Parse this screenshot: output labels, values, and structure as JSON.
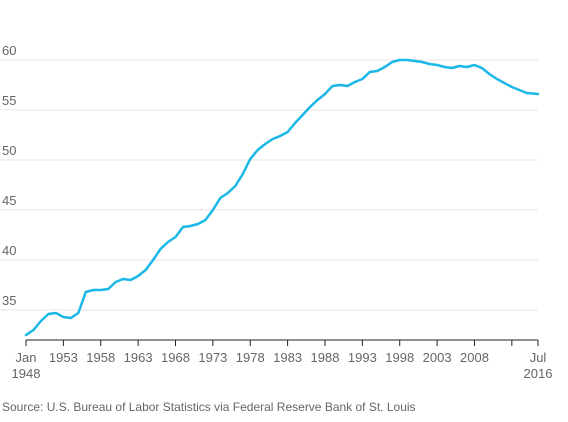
{
  "chart_data": {
    "type": "line",
    "title": "",
    "xlabel": "",
    "ylabel": "",
    "xlim": [
      1948.0,
      2016.5
    ],
    "ylim": [
      32,
      62
    ],
    "grid": true,
    "legend": "none",
    "colors": {
      "line": "#1ab8e6",
      "grid": "#e6e6e6",
      "axis": "#222222",
      "text": "#666666"
    },
    "y_ticks": [
      {
        "value": 35,
        "label": "35"
      },
      {
        "value": 40,
        "label": "40"
      },
      {
        "value": 45,
        "label": "45"
      },
      {
        "value": 50,
        "label": "50"
      },
      {
        "value": 55,
        "label": "55"
      },
      {
        "value": 60,
        "label": "60"
      }
    ],
    "x_ticks": [
      {
        "value": 1948.0,
        "label": "Jan",
        "sublabel": "1948"
      },
      {
        "value": 1953,
        "label": "1953"
      },
      {
        "value": 1958,
        "label": "1958"
      },
      {
        "value": 1963,
        "label": "1963"
      },
      {
        "value": 1968,
        "label": "1968"
      },
      {
        "value": 1973,
        "label": "1973"
      },
      {
        "value": 1978,
        "label": "1978"
      },
      {
        "value": 1983,
        "label": "1983"
      },
      {
        "value": 1988,
        "label": "1988"
      },
      {
        "value": 1993,
        "label": "1993"
      },
      {
        "value": 1998,
        "label": "1998"
      },
      {
        "value": 2003,
        "label": "2003"
      },
      {
        "value": 2008,
        "label": "2008"
      },
      {
        "value": 2013,
        "label": ""
      },
      {
        "value": 2016.5,
        "label": "Jul",
        "sublabel": "2016"
      }
    ],
    "series": [
      {
        "x": [
          1948.0,
          1949,
          1950,
          1951,
          1952,
          1953,
          1954,
          1955,
          1956,
          1957,
          1958,
          1959,
          1960,
          1961,
          1962,
          1963,
          1964,
          1965,
          1966,
          1967,
          1968,
          1969,
          1970,
          1971,
          1972,
          1973,
          1974,
          1975,
          1976,
          1977,
          1978,
          1979,
          1980,
          1981,
          1982,
          1983,
          1984,
          1985,
          1986,
          1987,
          1988,
          1989,
          1990,
          1991,
          1992,
          1993,
          1994,
          1995,
          1996,
          1997,
          1998,
          1999,
          2000,
          2001,
          2002,
          2003,
          2004,
          2005,
          2006,
          2007,
          2008,
          2009,
          2010,
          2011,
          2012,
          2013,
          2014,
          2015,
          2016.5
        ],
        "values": [
          32.5,
          33.0,
          33.9,
          34.6,
          34.7,
          34.3,
          34.2,
          34.7,
          36.8,
          37.0,
          37.0,
          37.1,
          37.8,
          38.1,
          38.0,
          38.4,
          39.0,
          40.0,
          41.1,
          41.8,
          42.3,
          43.3,
          43.4,
          43.6,
          44.0,
          45.0,
          46.2,
          46.7,
          47.4,
          48.6,
          50.1,
          51.0,
          51.6,
          52.1,
          52.4,
          52.8,
          53.7,
          54.5,
          55.3,
          56.0,
          56.6,
          57.4,
          57.5,
          57.4,
          57.8,
          58.1,
          58.8,
          58.9,
          59.3,
          59.8,
          60.0,
          60.0,
          59.9,
          59.8,
          59.6,
          59.5,
          59.3,
          59.2,
          59.4,
          59.3,
          59.5,
          59.2,
          58.6,
          58.1,
          57.7,
          57.3,
          57.0,
          56.7,
          56.6
        ]
      }
    ]
  },
  "source_text": "Source: U.S. Bureau of Labor Statistics via Federal Reserve Bank of St. Louis"
}
